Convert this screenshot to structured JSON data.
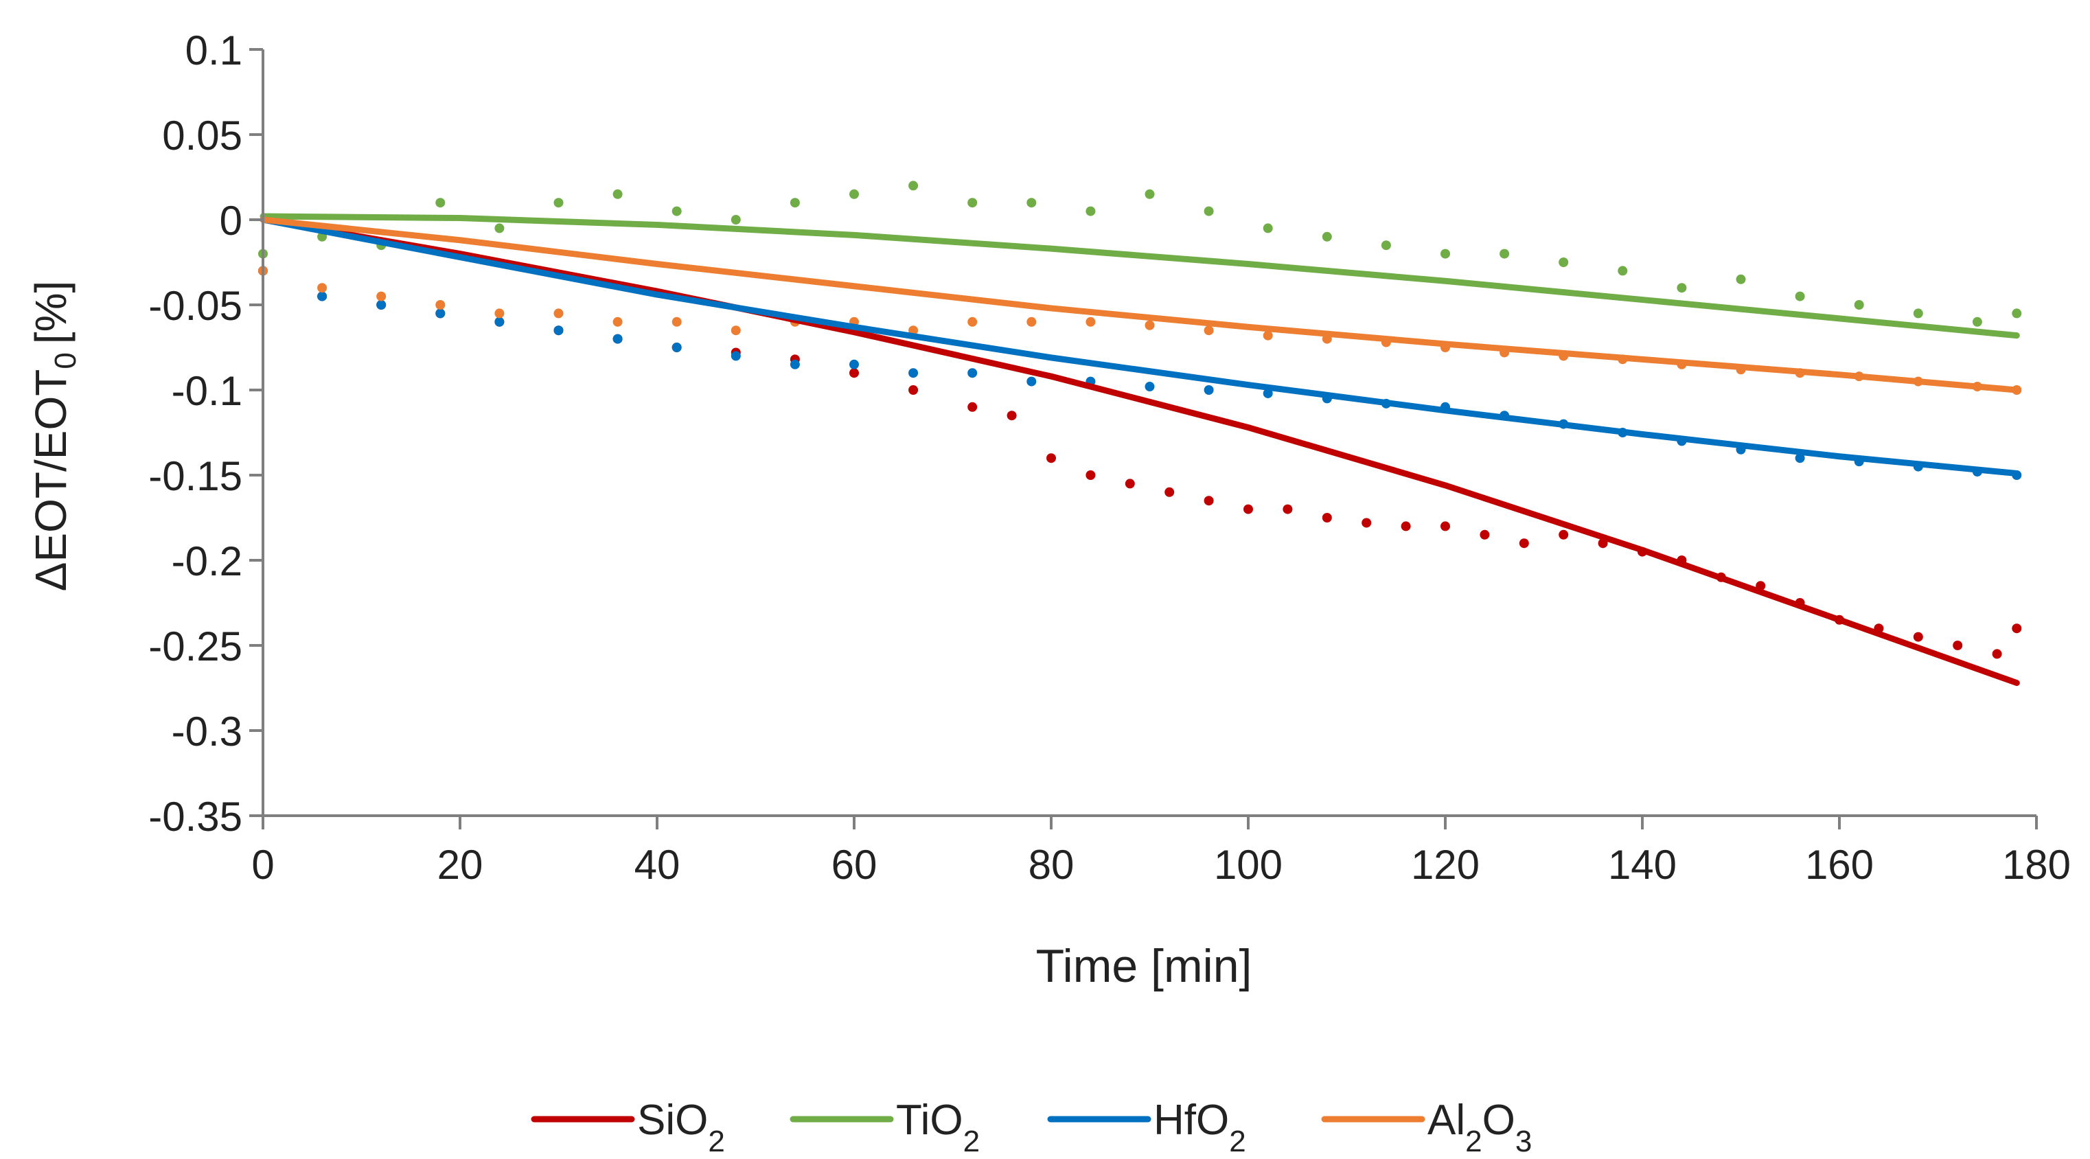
{
  "chart_data": {
    "type": "scatter",
    "title": "",
    "xlabel": "Time [min]",
    "ylabel_main": "ΔEOT/EOT",
    "ylabel_sub": "0",
    "ylabel_unit": "[%]",
    "xlim": [
      0,
      180
    ],
    "ylim": [
      -0.35,
      0.1
    ],
    "x_ticks": [
      0,
      20,
      40,
      60,
      80,
      100,
      120,
      140,
      160,
      180
    ],
    "y_ticks": [
      0.1,
      0.05,
      0,
      -0.05,
      -0.1,
      -0.15,
      -0.2,
      -0.25,
      -0.3,
      -0.35
    ],
    "x_tick_labels": [
      "0",
      "20",
      "40",
      "60",
      "80",
      "100",
      "120",
      "140",
      "160",
      "180"
    ],
    "y_tick_labels": [
      "0.1",
      "0.05",
      "0",
      "-0.05",
      "-0.1",
      "-0.15",
      "-0.2",
      "-0.25",
      "-0.3",
      "-0.35"
    ],
    "grid": false,
    "legend_position": "bottom-center",
    "series": [
      {
        "name": "SiO2",
        "legend_base": "SiO",
        "legend_parts": [
          {
            "t": "SiO",
            "sub": false
          },
          {
            "t": "2",
            "sub": true
          }
        ],
        "color": "#c00000",
        "trend_x": [
          0,
          20,
          40,
          60,
          80,
          100,
          120,
          140,
          160,
          178
        ],
        "trend_y": [
          0,
          -0.02,
          -0.042,
          -0.066,
          -0.092,
          -0.122,
          -0.156,
          -0.194,
          -0.235,
          -0.272
        ],
        "scatter_x": [
          0,
          6,
          12,
          18,
          24,
          30,
          36,
          42,
          48,
          54,
          60,
          66,
          72,
          76,
          80,
          84,
          88,
          92,
          96,
          100,
          104,
          108,
          112,
          116,
          120,
          124,
          128,
          132,
          136,
          140,
          144,
          148,
          152,
          156,
          160,
          164,
          168,
          172,
          176,
          178
        ],
        "scatter_y": [
          -0.03,
          -0.045,
          -0.05,
          -0.055,
          -0.06,
          -0.065,
          -0.07,
          -0.075,
          -0.078,
          -0.082,
          -0.09,
          -0.1,
          -0.11,
          -0.115,
          -0.14,
          -0.15,
          -0.155,
          -0.16,
          -0.165,
          -0.17,
          -0.17,
          -0.175,
          -0.178,
          -0.18,
          -0.18,
          -0.185,
          -0.19,
          -0.185,
          -0.19,
          -0.195,
          -0.2,
          -0.21,
          -0.215,
          -0.225,
          -0.235,
          -0.24,
          -0.245,
          -0.25,
          -0.255,
          -0.24
        ]
      },
      {
        "name": "TiO2",
        "legend_base": "TiO",
        "legend_parts": [
          {
            "t": "TiO",
            "sub": false
          },
          {
            "t": "2",
            "sub": true
          }
        ],
        "color": "#70ad47",
        "trend_x": [
          0,
          20,
          40,
          60,
          80,
          100,
          120,
          140,
          160,
          178
        ],
        "trend_y": [
          0.002,
          0.001,
          -0.003,
          -0.009,
          -0.017,
          -0.026,
          -0.036,
          -0.047,
          -0.058,
          -0.068
        ],
        "scatter_x": [
          0,
          6,
          12,
          18,
          24,
          30,
          36,
          42,
          48,
          54,
          60,
          66,
          72,
          78,
          84,
          90,
          96,
          102,
          108,
          114,
          120,
          126,
          132,
          138,
          144,
          150,
          156,
          162,
          168,
          174,
          178
        ],
        "scatter_y": [
          -0.02,
          -0.01,
          -0.015,
          0.01,
          -0.005,
          0.01,
          0.015,
          0.005,
          0.0,
          0.01,
          0.015,
          0.02,
          0.01,
          0.01,
          0.005,
          0.015,
          0.005,
          -0.005,
          -0.01,
          -0.015,
          -0.02,
          -0.02,
          -0.025,
          -0.03,
          -0.04,
          -0.035,
          -0.045,
          -0.05,
          -0.055,
          -0.06,
          -0.055
        ]
      },
      {
        "name": "HfO2",
        "legend_base": "HfO",
        "legend_parts": [
          {
            "t": "HfO",
            "sub": false
          },
          {
            "t": "2",
            "sub": true
          }
        ],
        "color": "#0070c0",
        "trend_x": [
          0,
          20,
          40,
          60,
          80,
          100,
          120,
          140,
          160,
          178
        ],
        "trend_y": [
          0,
          -0.022,
          -0.044,
          -0.063,
          -0.081,
          -0.097,
          -0.112,
          -0.126,
          -0.139,
          -0.149
        ],
        "scatter_x": [
          0,
          6,
          12,
          18,
          24,
          30,
          36,
          42,
          48,
          54,
          60,
          66,
          72,
          78,
          84,
          90,
          96,
          102,
          108,
          114,
          120,
          126,
          132,
          138,
          144,
          150,
          156,
          162,
          168,
          174,
          178
        ],
        "scatter_y": [
          -0.03,
          -0.045,
          -0.05,
          -0.055,
          -0.06,
          -0.065,
          -0.07,
          -0.075,
          -0.08,
          -0.085,
          -0.085,
          -0.09,
          -0.09,
          -0.095,
          -0.095,
          -0.098,
          -0.1,
          -0.102,
          -0.105,
          -0.108,
          -0.11,
          -0.115,
          -0.12,
          -0.125,
          -0.13,
          -0.135,
          -0.14,
          -0.142,
          -0.145,
          -0.148,
          -0.15
        ]
      },
      {
        "name": "Al2O3",
        "legend_base": "Al2O3",
        "legend_parts": [
          {
            "t": "Al",
            "sub": false
          },
          {
            "t": "2",
            "sub": true
          },
          {
            "t": "O",
            "sub": false
          },
          {
            "t": "3",
            "sub": true
          }
        ],
        "color": "#ed7d31",
        "trend_x": [
          0,
          20,
          40,
          60,
          80,
          100,
          120,
          140,
          160,
          178
        ],
        "trend_y": [
          0,
          -0.012,
          -0.026,
          -0.039,
          -0.052,
          -0.063,
          -0.073,
          -0.082,
          -0.091,
          -0.1
        ],
        "scatter_x": [
          0,
          6,
          12,
          18,
          24,
          30,
          36,
          42,
          48,
          54,
          60,
          66,
          72,
          78,
          84,
          90,
          96,
          102,
          108,
          114,
          120,
          126,
          132,
          138,
          144,
          150,
          156,
          162,
          168,
          174,
          178
        ],
        "scatter_y": [
          -0.03,
          -0.04,
          -0.045,
          -0.05,
          -0.055,
          -0.055,
          -0.06,
          -0.06,
          -0.065,
          -0.06,
          -0.06,
          -0.065,
          -0.06,
          -0.06,
          -0.06,
          -0.062,
          -0.065,
          -0.068,
          -0.07,
          -0.072,
          -0.075,
          -0.078,
          -0.08,
          -0.082,
          -0.085,
          -0.088,
          -0.09,
          -0.092,
          -0.095,
          -0.098,
          -0.1
        ]
      }
    ]
  }
}
